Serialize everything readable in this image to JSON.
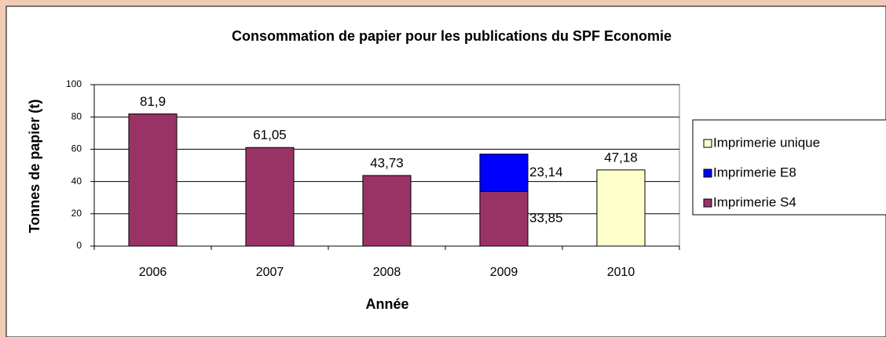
{
  "chart_data": {
    "type": "stacked_bar",
    "title": "Consommation de papier pour les publications du SPF Economie",
    "x_label": "Année",
    "y_label": "Tonnes de papier (t)",
    "categories": [
      "2006",
      "2007",
      "2008",
      "2009",
      "2010"
    ],
    "series": [
      {
        "name": "Imprimerie S4",
        "color": "#993366",
        "values": [
          81.9,
          61.05,
          43.73,
          33.85,
          null
        ],
        "value_labels": [
          "81,9",
          "61,05",
          "43,73",
          "33,85",
          null
        ]
      },
      {
        "name": "Imprimerie E8",
        "color": "#0000ff",
        "values": [
          null,
          null,
          null,
          23.14,
          null
        ],
        "value_labels": [
          null,
          null,
          null,
          "23,14",
          null
        ]
      },
      {
        "name": "Imprimerie unique",
        "color": "#ffffcc",
        "values": [
          null,
          null,
          null,
          null,
          47.18
        ],
        "value_labels": [
          null,
          null,
          null,
          null,
          "47,18"
        ]
      }
    ],
    "ylim": [
      0,
      100
    ],
    "yticks": [
      0,
      20,
      40,
      60,
      80,
      100
    ],
    "grid": true,
    "legend": "right"
  }
}
